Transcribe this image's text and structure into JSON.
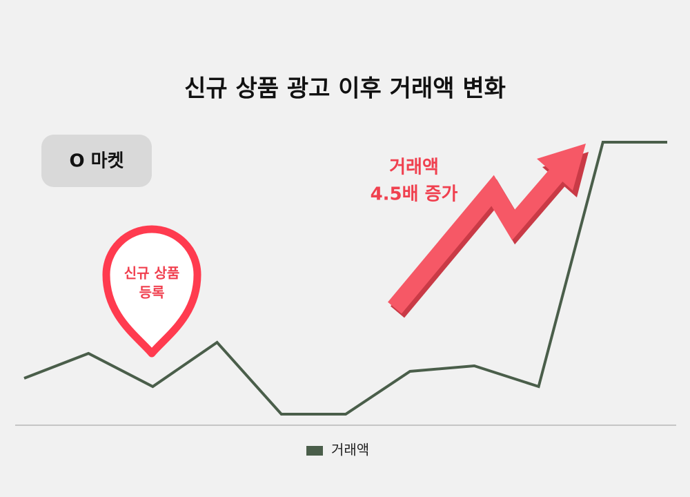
{
  "chart_data": {
    "type": "line",
    "title": "신규 상품 광고 이후 거래액 변화",
    "badge": "O 마켓",
    "pin_label": [
      "신규 상품",
      "등록"
    ],
    "arrow_label": [
      "거래액",
      "4.5배 증가"
    ],
    "categories": [
      null,
      null,
      null,
      null,
      null,
      null,
      null,
      null,
      null,
      null,
      null
    ],
    "series": [
      {
        "name": "거래액",
        "color": "#4a5e4a",
        "values": [
          17,
          26,
          14,
          30,
          4,
          4,
          19.5,
          21.5,
          14,
          102.5,
          102.5
        ]
      }
    ],
    "ylim": [
      0,
      120
    ]
  }
}
